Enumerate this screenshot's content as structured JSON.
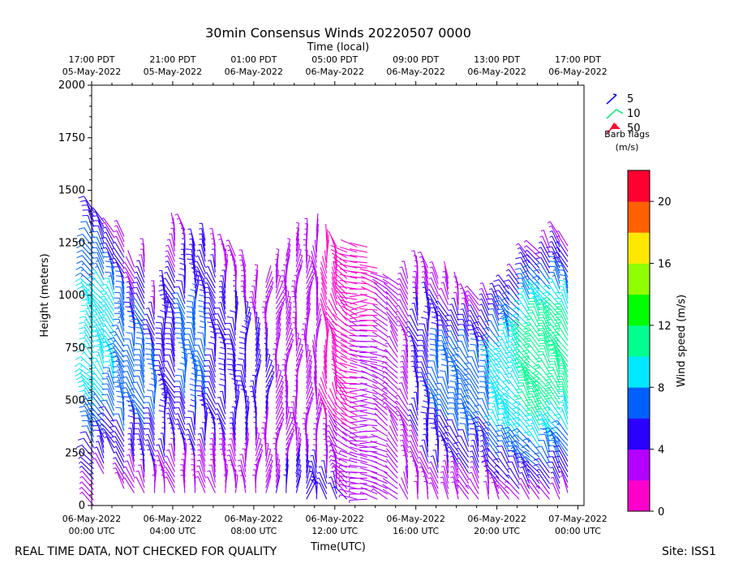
{
  "chart_data": {
    "type": "wind-barb-time-height",
    "title": "30min Consensus Winds 20220507 0000",
    "top_axis_title": "Time (local)",
    "top_ticks": [
      {
        "time": "17:00 PDT",
        "date": "05-May-2022"
      },
      {
        "time": "21:00 PDT",
        "date": "05-May-2022"
      },
      {
        "time": "01:00 PDT",
        "date": "06-May-2022"
      },
      {
        "time": "05:00 PDT",
        "date": "06-May-2022"
      },
      {
        "time": "09:00 PDT",
        "date": "06-May-2022"
      },
      {
        "time": "13:00 PDT",
        "date": "06-May-2022"
      },
      {
        "time": "17:00 PDT",
        "date": "06-May-2022"
      }
    ],
    "xlabel": "Time(UTC)",
    "x_ticks": [
      {
        "date": "06-May-2022",
        "time": "00:00 UTC",
        "hours": 0
      },
      {
        "date": "06-May-2022",
        "time": "04:00 UTC",
        "hours": 4
      },
      {
        "date": "06-May-2022",
        "time": "08:00 UTC",
        "hours": 8
      },
      {
        "date": "06-May-2022",
        "time": "12:00 UTC",
        "hours": 12
      },
      {
        "date": "06-May-2022",
        "time": "16:00 UTC",
        "hours": 16
      },
      {
        "date": "06-May-2022",
        "time": "20:00 UTC",
        "hours": 20
      },
      {
        "date": "07-May-2022",
        "time": "00:00 UTC",
        "hours": 24
      }
    ],
    "xlim_hours": [
      0,
      24.3
    ],
    "ylabel": "Height (meters)",
    "y_ticks": [
      0,
      250,
      500,
      750,
      1000,
      1250,
      1500,
      1750,
      2000
    ],
    "ylim": [
      0,
      2000
    ],
    "legend": {
      "title_line1": "Barb flags",
      "title_line2": "(m/s)",
      "entries": [
        {
          "label": "5",
          "color": "#1010ff"
        },
        {
          "label": "10",
          "color": "#1ae67a"
        },
        {
          "label": "50",
          "color": "#ff1030"
        }
      ]
    },
    "colorbar": {
      "label": "Wind speed (m/s)",
      "ticks": [
        0,
        4,
        8,
        12,
        16,
        20
      ],
      "min": 0,
      "max": 22,
      "colors": [
        "#ff00cc",
        "#b400ff",
        "#2a00ff",
        "#0060ff",
        "#00e8ff",
        "#00ff90",
        "#00ff00",
        "#90ff00",
        "#ffe800",
        "#ff6000",
        "#ff0030"
      ]
    },
    "wind_columns": [
      {
        "t": 0.1,
        "h0": 0,
        "h1": 1410,
        "s_lo": 2.5,
        "s_mid": 8.5,
        "s_hi": 5.0,
        "dir": 215
      },
      {
        "t": 0.6,
        "h0": 150,
        "h1": 1350,
        "s_lo": 3.5,
        "s_mid": 9.0,
        "s_hi": 4.5,
        "dir": 210
      },
      {
        "t": 1.1,
        "h0": 250,
        "h1": 1300,
        "s_lo": 4.0,
        "s_mid": 8.5,
        "s_hi": 3.5,
        "dir": 205
      },
      {
        "t": 1.6,
        "h0": 80,
        "h1": 1280,
        "s_lo": 3.5,
        "s_mid": 7.5,
        "s_hi": 3.0,
        "dir": 200
      },
      {
        "t": 2.1,
        "h0": 60,
        "h1": 1150,
        "s_lo": 3.0,
        "s_mid": 6.0,
        "s_hi": 2.0,
        "dir": 195
      },
      {
        "t": 2.6,
        "h0": 60,
        "h1": 1200,
        "s_lo": 3.0,
        "s_mid": 7.0,
        "s_hi": 2.5,
        "dir": 200
      },
      {
        "t": 3.1,
        "h0": 60,
        "h1": 1000,
        "s_lo": 3.0,
        "s_mid": 6.0,
        "s_hi": 3.0,
        "dir": 190
      },
      {
        "t": 3.6,
        "h0": 60,
        "h1": 1050,
        "s_lo": 3.0,
        "s_mid": 5.5,
        "s_hi": 4.5,
        "dir": 185
      },
      {
        "t": 4.1,
        "h0": 60,
        "h1": 1320,
        "s_lo": 2.5,
        "s_mid": 5.5,
        "s_hi": 2.0,
        "dir": 200
      },
      {
        "t": 4.6,
        "h0": 60,
        "h1": 1330,
        "s_lo": 2.5,
        "s_mid": 6.0,
        "s_hi": 3.5,
        "dir": 190
      },
      {
        "t": 5.1,
        "h0": 60,
        "h1": 1240,
        "s_lo": 2.5,
        "s_mid": 6.5,
        "s_hi": 4.5,
        "dir": 185
      },
      {
        "t": 5.6,
        "h0": 60,
        "h1": 1280,
        "s_lo": 2.5,
        "s_mid": 6.0,
        "s_hi": 4.0,
        "dir": 190
      },
      {
        "t": 6.1,
        "h0": 60,
        "h1": 1240,
        "s_lo": 2.5,
        "s_mid": 5.5,
        "s_hi": 3.5,
        "dir": 195
      },
      {
        "t": 6.6,
        "h0": 60,
        "h1": 1220,
        "s_lo": 2.5,
        "s_mid": 5.0,
        "s_hi": 3.0,
        "dir": 190
      },
      {
        "t": 7.1,
        "h0": 60,
        "h1": 1190,
        "s_lo": 2.5,
        "s_mid": 5.0,
        "s_hi": 3.0,
        "dir": 185
      },
      {
        "t": 7.6,
        "h0": 60,
        "h1": 1140,
        "s_lo": 2.5,
        "s_mid": 5.0,
        "s_hi": 2.5,
        "dir": 180
      },
      {
        "t": 8.1,
        "h0": 60,
        "h1": 1070,
        "s_lo": 2.5,
        "s_mid": 4.5,
        "s_hi": 2.5,
        "dir": 175
      },
      {
        "t": 8.6,
        "h0": 60,
        "h1": 1070,
        "s_lo": 3.0,
        "s_mid": 4.0,
        "s_hi": 2.0,
        "dir": 170
      },
      {
        "t": 9.1,
        "h0": 60,
        "h1": 1150,
        "s_lo": 4.0,
        "s_mid": 3.5,
        "s_hi": 3.5,
        "dir": 165
      },
      {
        "t": 9.6,
        "h0": 60,
        "h1": 1190,
        "s_lo": 4.5,
        "s_mid": 3.0,
        "s_hi": 3.5,
        "dir": 170
      },
      {
        "t": 10.1,
        "h0": 60,
        "h1": 1260,
        "s_lo": 5.0,
        "s_mid": 2.5,
        "s_hi": 2.5,
        "dir": 175
      },
      {
        "t": 10.6,
        "h0": 30,
        "h1": 1280,
        "s_lo": 5.0,
        "s_mid": 2.5,
        "s_hi": 3.0,
        "dir": 170
      },
      {
        "t": 11.1,
        "h0": 30,
        "h1": 1320,
        "s_lo": 5.0,
        "s_mid": 2.0,
        "s_hi": 2.0,
        "dir": 180
      },
      {
        "t": 11.6,
        "h0": 30,
        "h1": 1260,
        "s_lo": 5.0,
        "s_mid": 1.5,
        "s_hi": 2.0,
        "dir": 190
      },
      {
        "t": 12.1,
        "h0": 30,
        "h1": 1240,
        "s_lo": 4.5,
        "s_mid": 1.5,
        "s_hi": 1.5,
        "dir": 200
      },
      {
        "t": 12.6,
        "h0": 30,
        "h1": 1220,
        "s_lo": 4.0,
        "s_mid": 1.5,
        "s_hi": 1.5,
        "dir": 230
      },
      {
        "t": 13.1,
        "h0": 30,
        "h1": 1250,
        "s_lo": 3.5,
        "s_mid": 1.5,
        "s_hi": 1.5,
        "dir": 250
      },
      {
        "t": 13.6,
        "h0": 30,
        "h1": 1250,
        "s_lo": 3.0,
        "s_mid": 2.0,
        "s_hi": 1.5,
        "dir": 270
      },
      {
        "t": 14.1,
        "h0": 30,
        "h1": 1150,
        "s_lo": 2.5,
        "s_mid": 2.0,
        "s_hi": 1.5,
        "dir": 260
      },
      {
        "t": 14.6,
        "h0": 30,
        "h1": 1100,
        "s_lo": 2.5,
        "s_mid": 2.0,
        "s_hi": 2.0,
        "dir": 240
      },
      {
        "t": 15.1,
        "h0": 30,
        "h1": 1060,
        "s_lo": 2.0,
        "s_mid": 2.5,
        "s_hi": 2.0,
        "dir": 220
      },
      {
        "t": 15.6,
        "h0": 30,
        "h1": 1100,
        "s_lo": 2.0,
        "s_mid": 3.5,
        "s_hi": 3.0,
        "dir": 200
      },
      {
        "t": 16.1,
        "h0": 30,
        "h1": 1130,
        "s_lo": 2.5,
        "s_mid": 4.5,
        "s_hi": 3.5,
        "dir": 195
      },
      {
        "t": 16.6,
        "h0": 30,
        "h1": 1130,
        "s_lo": 3.0,
        "s_mid": 5.5,
        "s_hi": 3.0,
        "dir": 190
      },
      {
        "t": 17.1,
        "h0": 30,
        "h1": 1100,
        "s_lo": 3.0,
        "s_mid": 6.0,
        "s_hi": 2.5,
        "dir": 195
      },
      {
        "t": 17.6,
        "h0": 30,
        "h1": 1080,
        "s_lo": 2.5,
        "s_mid": 6.0,
        "s_hi": 2.0,
        "dir": 200
      },
      {
        "t": 18.1,
        "h0": 30,
        "h1": 1050,
        "s_lo": 2.5,
        "s_mid": 6.5,
        "s_hi": 2.0,
        "dir": 200
      },
      {
        "t": 18.6,
        "h0": 30,
        "h1": 1000,
        "s_lo": 2.5,
        "s_mid": 7.0,
        "s_hi": 2.5,
        "dir": 205
      },
      {
        "t": 19.1,
        "h0": 30,
        "h1": 980,
        "s_lo": 2.5,
        "s_mid": 6.5,
        "s_hi": 3.0,
        "dir": 205
      },
      {
        "t": 19.6,
        "h0": 30,
        "h1": 1000,
        "s_lo": 2.5,
        "s_mid": 6.0,
        "s_hi": 3.5,
        "dir": 200
      },
      {
        "t": 20.1,
        "h0": 30,
        "h1": 1000,
        "s_lo": 3.0,
        "s_mid": 8.5,
        "s_hi": 4.0,
        "dir": 210
      },
      {
        "t": 20.6,
        "h0": 30,
        "h1": 1040,
        "s_lo": 3.0,
        "s_mid": 9.0,
        "s_hi": 4.5,
        "dir": 210
      },
      {
        "t": 21.1,
        "h0": 30,
        "h1": 1080,
        "s_lo": 3.5,
        "s_mid": 9.5,
        "s_hi": 4.0,
        "dir": 215
      },
      {
        "t": 21.6,
        "h0": 30,
        "h1": 1200,
        "s_lo": 3.5,
        "s_mid": 10.0,
        "s_hi": 3.5,
        "dir": 215
      },
      {
        "t": 22.1,
        "h0": 30,
        "h1": 1220,
        "s_lo": 3.5,
        "s_mid": 11.5,
        "s_hi": 3.0,
        "dir": 215
      },
      {
        "t": 22.6,
        "h0": 30,
        "h1": 1240,
        "s_lo": 3.5,
        "s_mid": 11.0,
        "s_hi": 3.0,
        "dir": 210
      },
      {
        "t": 23.1,
        "h0": 30,
        "h1": 1280,
        "s_lo": 3.5,
        "s_mid": 10.5,
        "s_hi": 3.0,
        "dir": 210
      },
      {
        "t": 23.5,
        "h0": 60,
        "h1": 1250,
        "s_lo": 3.5,
        "s_mid": 10.0,
        "s_hi": 3.0,
        "dir": 205
      }
    ]
  },
  "footer": {
    "disclaimer": "REAL TIME DATA, NOT CHECKED FOR QUALITY",
    "site": "Site: ISS1"
  }
}
